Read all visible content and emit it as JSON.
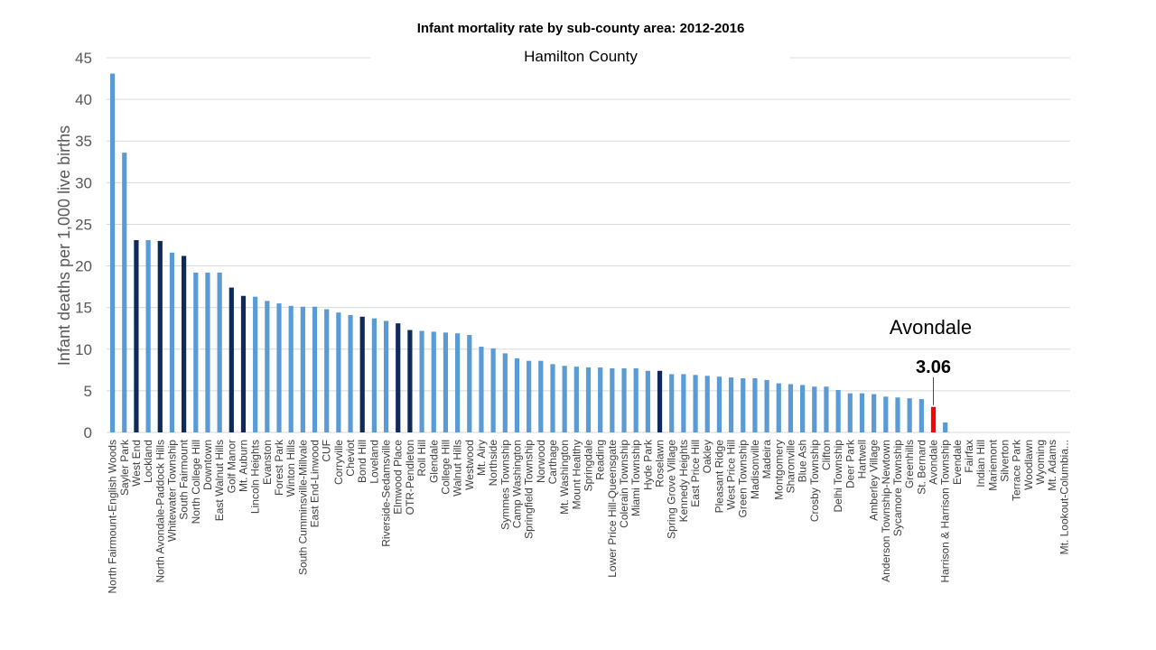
{
  "chart_data": {
    "type": "bar",
    "title": "Infant mortality rate by sub-county area: 2012-2016",
    "subtitle": "Hamilton County",
    "y_label": "Infant deaths per 1,000 live births",
    "annotation": "Avondale",
    "categories": [
      "North Fairmount-English Woods",
      "Sayler Park",
      "West End",
      "Lockland",
      "North Avondale-Paddock Hills",
      "Whitewater Township",
      "South Fairmount",
      "North College Hill",
      "Downtown",
      "East Walnut Hills",
      "Golf Manor",
      "Mt. Auburn",
      "Lincoln Heights",
      "Evanston",
      "Forest Park",
      "Winton Hills",
      "South Cumminsville-Millvale",
      "East End-Linwood",
      "CUF",
      "Corryville",
      "Cheviot",
      "Bond Hill",
      "Loveland",
      "Riverside-Sedamsville",
      "Elmwood Place",
      "OTR-Pendleton",
      "Roll Hill",
      "Glendale",
      "College Hill",
      "Walnut Hills",
      "Westwood",
      "Mt. Airy",
      "Northside",
      "Symmes Township",
      "Camp Washington",
      "Springfield Township",
      "Norwood",
      "Carthage",
      "Mt. Washington",
      "Mount Healthy",
      "Springdale",
      "Reading",
      "Lower Price Hill-Queensgate",
      "Colerain Township",
      "Miami Township",
      "Hyde Park",
      "Roselawn",
      "Spring Grove Village",
      "Kennedy Heights",
      "East Price Hill",
      "Oakley",
      "Pleasant Ridge",
      "West Price Hill",
      "Green Township",
      "Madisonville",
      "Madeira",
      "Montgomery",
      "Sharonville",
      "Blue Ash",
      "Crosby Township",
      "Clifton",
      "Delhi Township",
      "Deer Park",
      "Hartwell",
      "Amberley Village",
      "Anderson Township-Newtown",
      "Sycamore Township",
      "Greenhills",
      "St. Bernard",
      "Avondale",
      "Harrison & Harrison Township",
      "Evendale",
      "Fairfax",
      "Indian Hill",
      "Mariemont",
      "Silverton",
      "Terrace Park",
      "Woodlawn",
      "Wyoming",
      "Mt. Adams",
      "Mt. Lookout-Columbia..."
    ],
    "values": [
      43.1,
      33.6,
      23.1,
      23.1,
      23.0,
      21.6,
      21.2,
      19.2,
      19.2,
      19.2,
      17.4,
      16.4,
      16.3,
      15.8,
      15.5,
      15.2,
      15.1,
      15.1,
      14.8,
      14.4,
      14.1,
      13.9,
      13.7,
      13.4,
      13.1,
      12.3,
      12.2,
      12.1,
      12.0,
      11.9,
      11.7,
      10.3,
      10.1,
      9.5,
      8.9,
      8.6,
      8.6,
      8.2,
      8.0,
      7.9,
      7.8,
      7.8,
      7.7,
      7.7,
      7.7,
      7.4,
      7.4,
      7.0,
      7.0,
      6.9,
      6.8,
      6.7,
      6.6,
      6.5,
      6.5,
      6.3,
      5.9,
      5.8,
      5.7,
      5.5,
      5.5,
      5.1,
      4.7,
      4.7,
      4.6,
      4.3,
      4.2,
      4.1,
      4.0,
      3.06,
      1.2,
      0,
      0,
      0,
      0,
      0,
      0,
      0,
      0,
      0,
      0
    ],
    "colors": [
      "#5b9bd5",
      "#5b9bd5",
      "#0e2a5a",
      "#5b9bd5",
      "#0e2a5a",
      "#5b9bd5",
      "#0e2a5a",
      "#5b9bd5",
      "#5b9bd5",
      "#5b9bd5",
      "#0e2a5a",
      "#0e2a5a",
      "#5b9bd5",
      "#5b9bd5",
      "#5b9bd5",
      "#5b9bd5",
      "#5b9bd5",
      "#5b9bd5",
      "#5b9bd5",
      "#5b9bd5",
      "#5b9bd5",
      "#0e2a5a",
      "#5b9bd5",
      "#5b9bd5",
      "#0e2a5a",
      "#0e2a5a",
      "#5b9bd5",
      "#5b9bd5",
      "#5b9bd5",
      "#5b9bd5",
      "#5b9bd5",
      "#5b9bd5",
      "#5b9bd5",
      "#5b9bd5",
      "#5b9bd5",
      "#5b9bd5",
      "#5b9bd5",
      "#5b9bd5",
      "#5b9bd5",
      "#5b9bd5",
      "#5b9bd5",
      "#5b9bd5",
      "#5b9bd5",
      "#5b9bd5",
      "#5b9bd5",
      "#5b9bd5",
      "#0e2a5a",
      "#5b9bd5",
      "#5b9bd5",
      "#5b9bd5",
      "#5b9bd5",
      "#5b9bd5",
      "#5b9bd5",
      "#5b9bd5",
      "#5b9bd5",
      "#5b9bd5",
      "#5b9bd5",
      "#5b9bd5",
      "#5b9bd5",
      "#5b9bd5",
      "#5b9bd5",
      "#5b9bd5",
      "#5b9bd5",
      "#5b9bd5",
      "#5b9bd5",
      "#5b9bd5",
      "#5b9bd5",
      "#5b9bd5",
      "#5b9bd5",
      "#ff0000",
      "#5b9bd5",
      "#5b9bd5",
      "#5b9bd5",
      "#5b9bd5",
      "#5b9bd5",
      "#5b9bd5",
      "#5b9bd5",
      "#5b9bd5",
      "#5b9bd5",
      "#5b9bd5",
      "#5b9bd5"
    ],
    "labeled_index": 69,
    "ylim": [
      0,
      45
    ],
    "yticks": [
      0,
      5,
      10,
      15,
      20,
      25,
      30,
      35,
      40,
      45
    ],
    "grid": true
  }
}
